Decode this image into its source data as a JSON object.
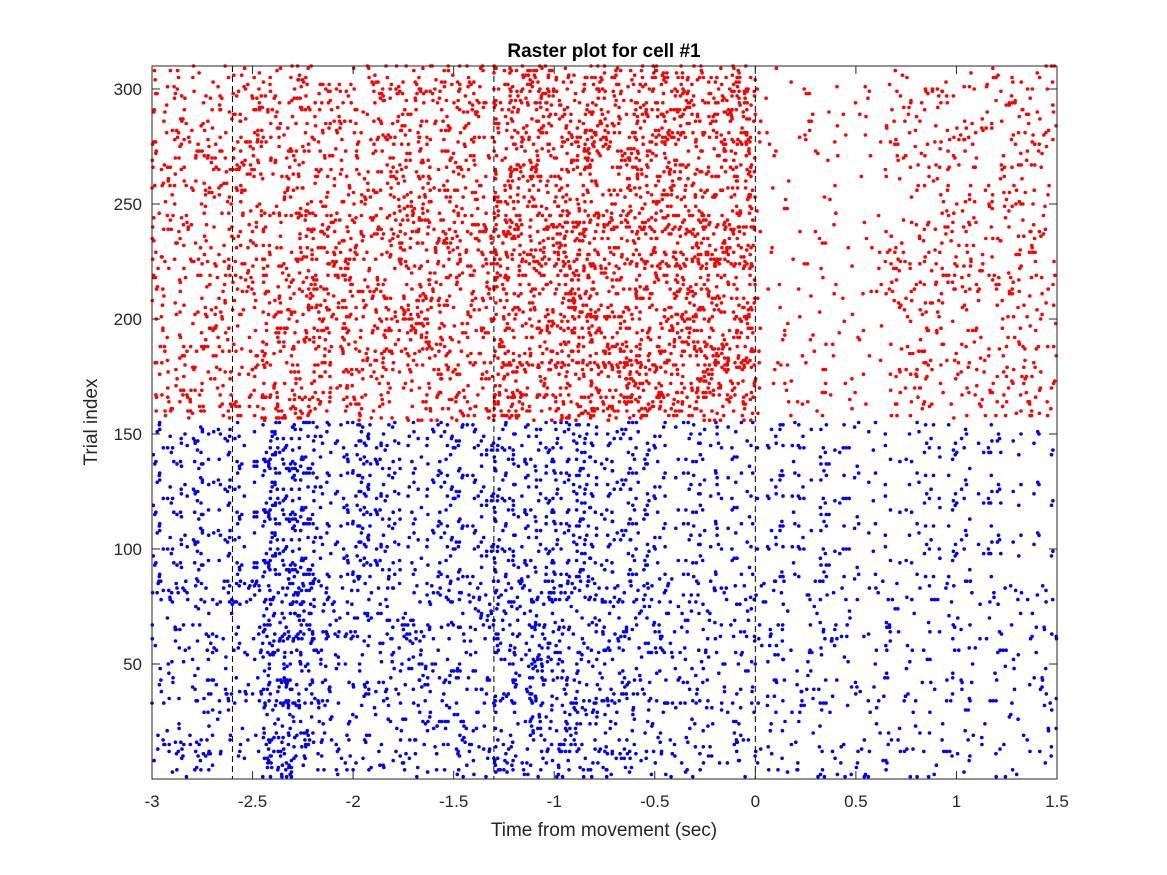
{
  "chart_data": {
    "type": "scatter",
    "title": "Raster plot for cell #1",
    "xlabel": "Time from movement (sec)",
    "ylabel": "Trial index",
    "xlim": [
      -3,
      1.5
    ],
    "ylim": [
      0,
      310
    ],
    "xticks": [
      -3,
      -2.5,
      -2,
      -1.5,
      -1,
      -0.5,
      0,
      0.5,
      1,
      1.5
    ],
    "xtick_labels": [
      "-3",
      "-2.5",
      "-2",
      "-1.5",
      "-1",
      "-0.5",
      "0",
      "0.5",
      "1",
      "1.5"
    ],
    "yticks": [
      50,
      100,
      150,
      200,
      250,
      300
    ],
    "ytick_labels": [
      "50",
      "100",
      "150",
      "200",
      "250",
      "300"
    ],
    "grid": false,
    "event_lines_x": [
      -2.6,
      -1.3,
      0
    ],
    "series": [
      {
        "color": "#0000ff",
        "trials": [
          1,
          155
        ],
        "rate_profile": [
          {
            "t_range": [
              -3.0,
              -2.45
            ],
            "relative_rate": 0.35
          },
          {
            "t_range": [
              -2.45,
              -2.2
            ],
            "relative_rate": 1.0
          },
          {
            "t_range": [
              -2.2,
              -1.3
            ],
            "relative_rate": 0.4
          },
          {
            "t_range": [
              -1.3,
              -0.6
            ],
            "relative_rate": 0.6
          },
          {
            "t_range": [
              -0.6,
              0.0
            ],
            "relative_rate": 0.4
          },
          {
            "t_range": [
              0.0,
              0.6
            ],
            "relative_rate": 0.3
          },
          {
            "t_range": [
              0.6,
              1.5
            ],
            "relative_rate": 0.25
          }
        ]
      },
      {
        "color": "#ff0000",
        "trials": [
          156,
          310
        ],
        "rate_profile": [
          {
            "t_range": [
              -3.0,
              -2.45
            ],
            "relative_rate": 0.5
          },
          {
            "t_range": [
              -2.45,
              -1.3
            ],
            "relative_rate": 0.65
          },
          {
            "t_range": [
              -1.3,
              0.0
            ],
            "relative_rate": 1.0
          },
          {
            "t_range": [
              0.0,
              0.65
            ],
            "relative_rate": 0.12
          },
          {
            "t_range": [
              0.65,
              1.5
            ],
            "relative_rate": 0.35
          }
        ]
      }
    ]
  }
}
